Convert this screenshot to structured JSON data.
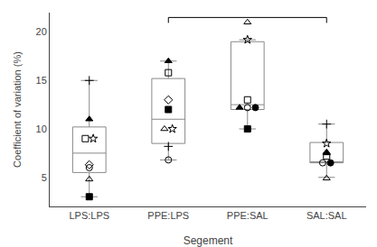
{
  "chart_data": {
    "type": "box",
    "xlabel": "Segement",
    "ylabel": "Coefficient of variation (%)",
    "categories": [
      "LPS:LPS",
      "PPE:LPS",
      "PPE:SAL",
      "SAL:SAL"
    ],
    "ylim": [
      2,
      22
    ],
    "yticks": [
      5,
      10,
      15,
      20
    ],
    "grid": false,
    "color": "#888888",
    "boxes": [
      {
        "q1": 5.5,
        "median": 7.5,
        "q3": 10.2,
        "whisker_low": 3.0,
        "whisker_high": 15.0
      },
      {
        "q1": 8.5,
        "median": 11.0,
        "q3": 15.2,
        "whisker_low": 6.8,
        "whisker_high": 17.0
      },
      {
        "q1": 12.0,
        "median": 12.5,
        "q3": 19.0,
        "whisker_low": 10.0,
        "whisker_high": 19.2
      },
      {
        "q1": 6.5,
        "median": 6.6,
        "q3": 8.6,
        "whisker_low": 5.0,
        "whisker_high": 10.5
      }
    ],
    "points": [
      [
        {
          "y": 9.0,
          "marker": "square-open"
        },
        {
          "y": 9.0,
          "marker": "star-open"
        },
        {
          "y": 11.0,
          "marker": "triangle-up"
        },
        {
          "y": 6.0,
          "marker": "circle-open"
        },
        {
          "y": 6.3,
          "marker": "diamond-open"
        },
        {
          "y": 4.8,
          "marker": "triangle-up-open"
        },
        {
          "y": 3.0,
          "marker": "square"
        },
        {
          "y": 15.0,
          "marker": "cross-thin-open"
        }
      ],
      [
        {
          "y": 15.8,
          "marker": "square-open"
        },
        {
          "y": 17.0,
          "marker": "triangle-up"
        },
        {
          "y": 13.0,
          "marker": "diamond-open"
        },
        {
          "y": 12.0,
          "marker": "square"
        },
        {
          "y": 10.0,
          "marker": "triangle-up-open"
        },
        {
          "y": 10.0,
          "marker": "star-open"
        },
        {
          "y": 8.2,
          "marker": "cross-thin-open"
        },
        {
          "y": 6.8,
          "marker": "circle-open"
        }
      ],
      [
        {
          "y": 21.0,
          "marker": "triangle-up-open"
        },
        {
          "y": 19.2,
          "marker": "star-open"
        },
        {
          "y": 13.0,
          "marker": "square-open"
        },
        {
          "y": 12.2,
          "marker": "triangle-up"
        },
        {
          "y": 12.2,
          "marker": "circle-open"
        },
        {
          "y": 12.2,
          "marker": "circle"
        },
        {
          "y": 10.0,
          "marker": "square"
        }
      ],
      [
        {
          "y": 10.5,
          "marker": "cross-thin-open"
        },
        {
          "y": 8.5,
          "marker": "star-open"
        },
        {
          "y": 7.6,
          "marker": "triangle-up"
        },
        {
          "y": 7.2,
          "marker": "square-open"
        },
        {
          "y": 7.5,
          "marker": "triangle-up"
        },
        {
          "y": 6.5,
          "marker": "circle-open"
        },
        {
          "y": 6.5,
          "marker": "circle"
        },
        {
          "y": 4.9,
          "marker": "triangle-up-open"
        }
      ]
    ],
    "significance_bar": {
      "x1": "PPE:LPS",
      "x2": "SAL:SAL",
      "y": 21.5
    }
  }
}
